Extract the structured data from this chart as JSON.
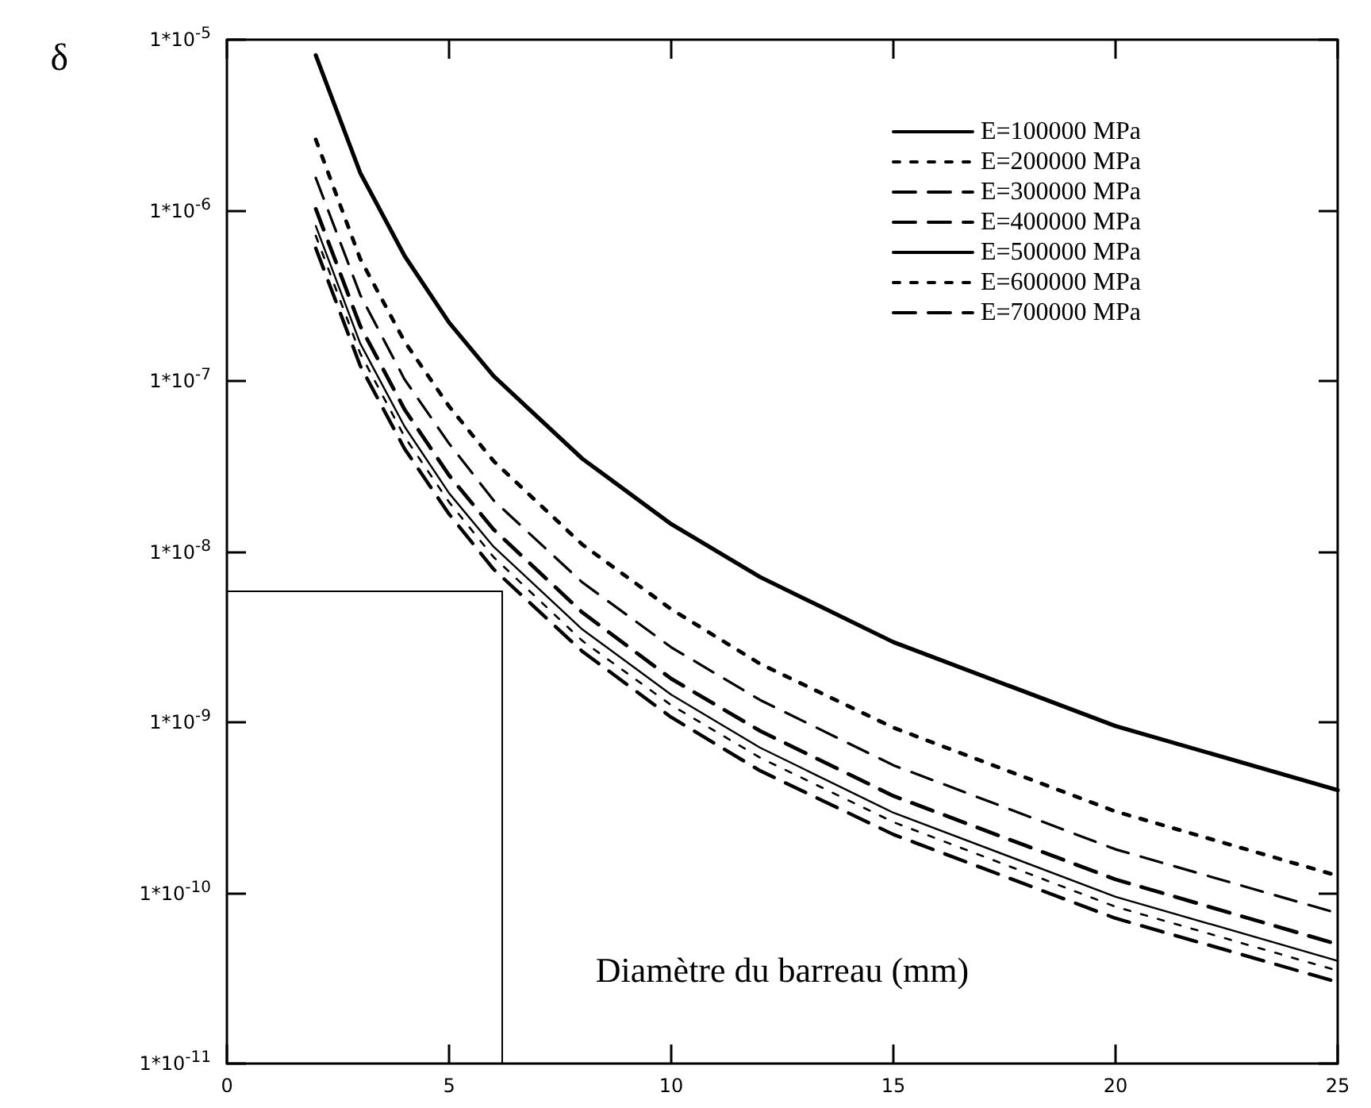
{
  "chart_data": {
    "type": "line",
    "xlabel": "Diamètre du barreau (mm)",
    "ylabel": "δ",
    "x": [
      2,
      3,
      4,
      5,
      6,
      8,
      10,
      12,
      15,
      20,
      25
    ],
    "series": [
      {
        "name": "E=100000 MPa",
        "color": "#000000",
        "line_style": "solid",
        "values": [
          8.1e-06,
          1.66e-06,
          5.4e-07,
          2.2e-07,
          1.07e-07,
          3.5e-08,
          1.45e-08,
          7.1e-09,
          2.95e-09,
          9.5e-10,
          4e-10
        ]
      },
      {
        "name": "E=200000 MPa",
        "color": "#000000",
        "line_style": "dotted",
        "values": [
          2.6e-06,
          5.2e-07,
          1.7e-07,
          7.1e-08,
          3.4e-08,
          1.1e-08,
          4.6e-09,
          2.2e-09,
          9.3e-10,
          3e-10,
          1.26e-10
        ]
      },
      {
        "name": "E=300000 MPa",
        "color": "#000000",
        "line_style": "dashed",
        "values": [
          1.55e-06,
          3.2e-07,
          1.02e-07,
          4.3e-08,
          2e-08,
          6.6e-09,
          2.75e-09,
          1.35e-09,
          5.6e-10,
          1.8e-10,
          7.6e-11
        ]
      },
      {
        "name": "E=400000 MPa",
        "color": "#000000",
        "line_style": "dashed",
        "values": [
          1.02e-06,
          2.1e-07,
          6.8e-08,
          2.8e-08,
          1.35e-08,
          4.4e-09,
          1.8e-09,
          8.9e-10,
          3.7e-10,
          1.2e-10,
          5e-11
        ]
      },
      {
        "name": "E=500000 MPa",
        "color": "#000000",
        "line_style": "solid",
        "values": [
          8.1e-07,
          1.66e-07,
          5.4e-08,
          2.2e-08,
          1.07e-08,
          3.5e-09,
          1.45e-09,
          7.1e-10,
          2.95e-10,
          9.5e-11,
          4e-11
        ]
      },
      {
        "name": "E=600000 MPa",
        "color": "#000000",
        "line_style": "dotted",
        "values": [
          7.1e-07,
          1.45e-07,
          4.7e-08,
          1.95e-08,
          9.3e-09,
          3e-09,
          1.26e-09,
          6.2e-10,
          2.6e-10,
          8.3e-11,
          3.5e-11
        ]
      },
      {
        "name": "E=700000 MPa",
        "color": "#000000",
        "line_style": "dashed",
        "values": [
          6e-07,
          1.23e-07,
          4e-08,
          1.66e-08,
          7.9e-09,
          2.6e-09,
          1.07e-09,
          5.2e-10,
          2.2e-10,
          7.1e-11,
          3e-11
        ]
      }
    ],
    "xlim": [
      0,
      25
    ],
    "xticks": [
      0,
      5,
      10,
      15,
      20,
      25
    ],
    "ylim": [
      1e-11,
      1e-05
    ],
    "log": "y",
    "yticks": [
      {
        "value": 1e-11,
        "label": "1*10$^{-11}$"
      },
      {
        "value": 1e-10,
        "label": "1*10$^{-10}$"
      },
      {
        "value": 1e-09,
        "label": "1*10$^{-9}$"
      },
      {
        "value": 1e-08,
        "label": "1*10$^{-8}$"
      },
      {
        "value": 1e-07,
        "label": "1*10$^{-7}$"
      },
      {
        "value": 1e-06,
        "label": "1*10$^{-6}$"
      },
      {
        "value": 1e-05,
        "label": "1*10$^{-5}$"
      }
    ],
    "ref_lines": [
      {
        "axis": "x",
        "value": 6.2,
        "color": "#000000"
      },
      {
        "axis": "y",
        "value": 5.9e-09,
        "color": "#000000"
      }
    ],
    "grid": false,
    "legend": "top right",
    "marker": "none"
  }
}
